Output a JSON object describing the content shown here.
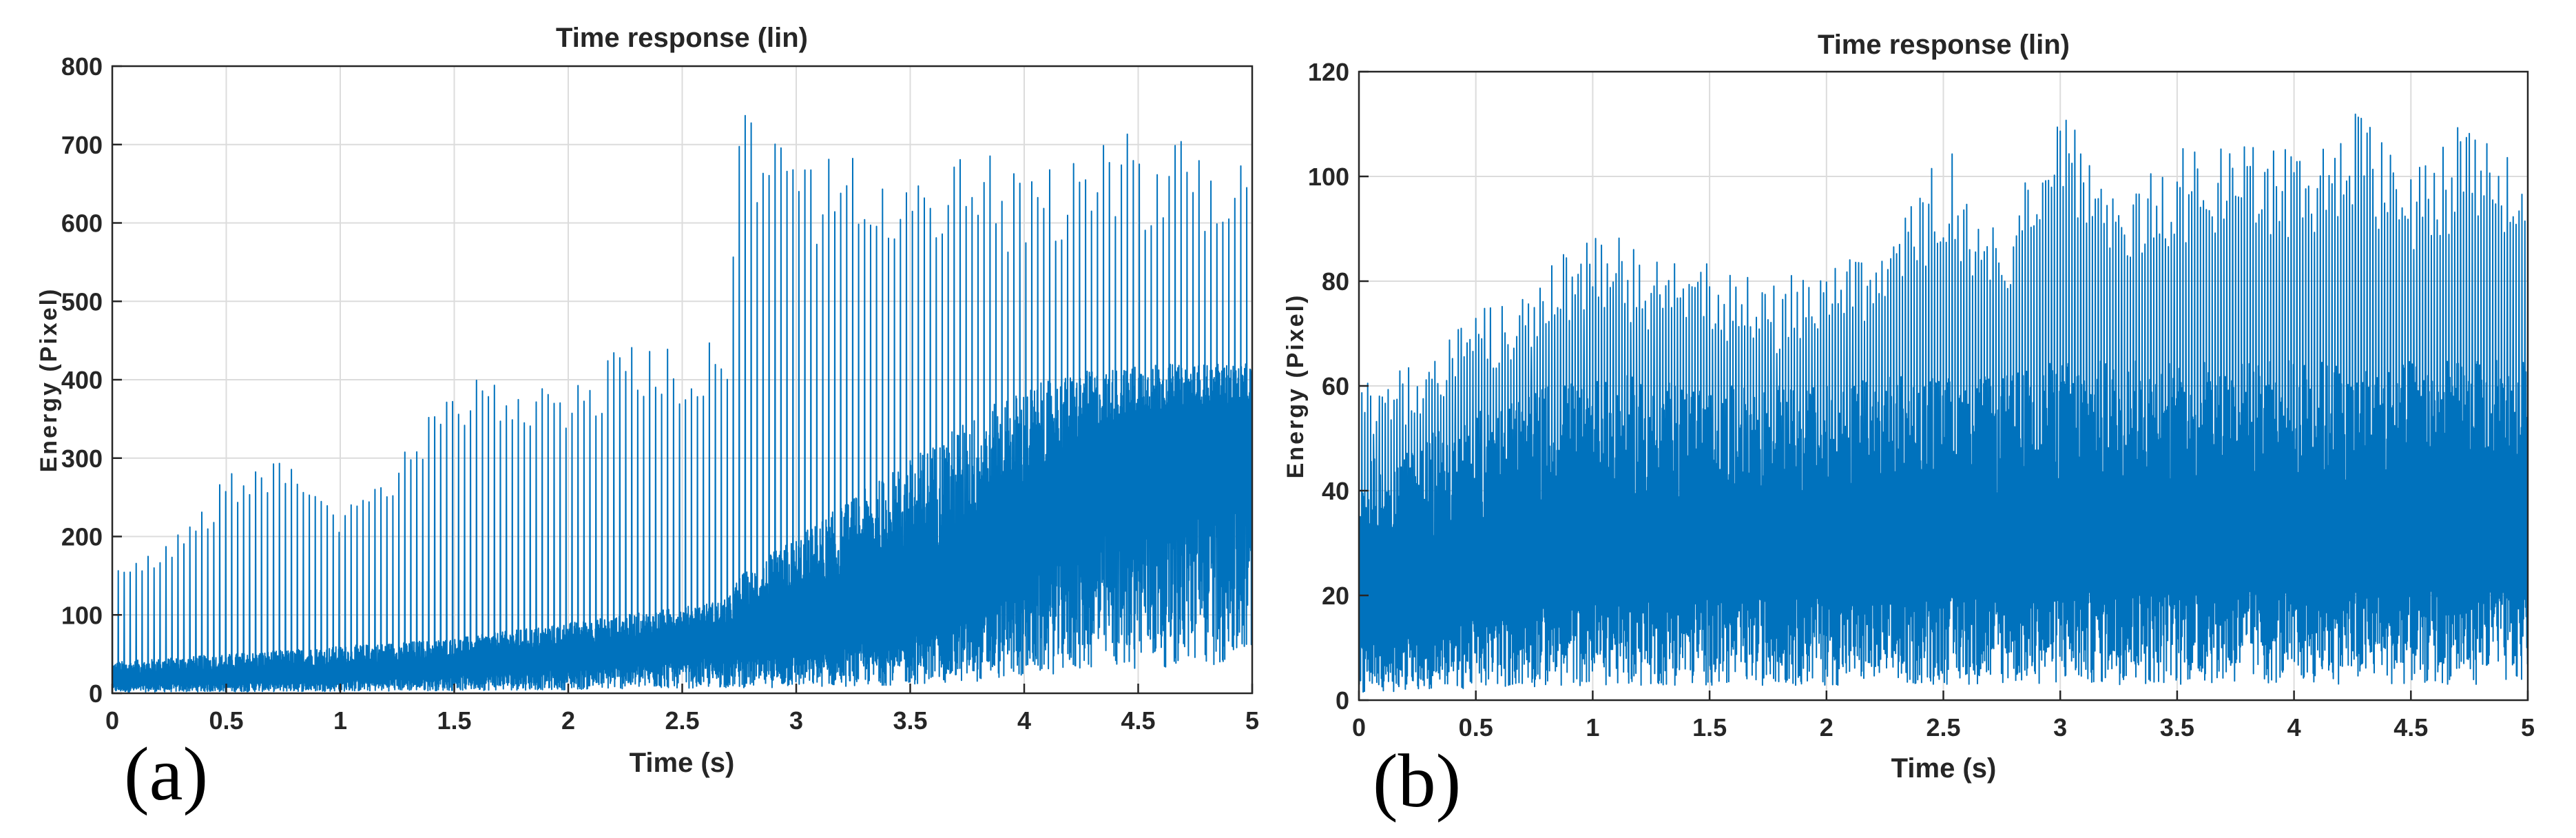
{
  "chart_data": [
    {
      "panel_label": "(a)",
      "type": "line",
      "title": "Time response (lin)",
      "xlabel": "Time (s)",
      "ylabel": "Energy (Pixel)",
      "xlim": [
        0,
        5
      ],
      "ylim": [
        0,
        800
      ],
      "xticks": [
        0,
        0.5,
        1,
        1.5,
        2,
        2.5,
        3,
        3.5,
        4,
        4.5,
        5
      ],
      "yticks": [
        0,
        100,
        200,
        300,
        400,
        500,
        600,
        700,
        800
      ],
      "grid": true,
      "color": "#0072bd",
      "series": [
        {
          "x": [
            0.0,
            0.25,
            0.5,
            0.75,
            1.0,
            1.25,
            1.5,
            1.75,
            2.0,
            2.25,
            2.5,
            2.7,
            2.75,
            3.0,
            3.25,
            3.5,
            3.75,
            4.0,
            4.25,
            4.5,
            4.75,
            5.0
          ],
          "baseline": [
            15,
            18,
            20,
            22,
            25,
            30,
            35,
            40,
            45,
            55,
            65,
            70,
            70,
            75,
            90,
            110,
            140,
            200,
            280,
            320,
            340,
            340
          ],
          "band_top": [
            40,
            45,
            50,
            55,
            60,
            65,
            70,
            80,
            90,
            100,
            110,
            120,
            150,
            200,
            250,
            300,
            350,
            390,
            410,
            420,
            420,
            420
          ],
          "peak_envelope": [
            160,
            200,
            280,
            300,
            240,
            300,
            400,
            400,
            410,
            450,
            450,
            460,
            750,
            680,
            700,
            690,
            700,
            680,
            700,
            720,
            700,
            690
          ]
        }
      ]
    },
    {
      "panel_label": "(b)",
      "type": "line",
      "title": "Time response (lin)",
      "xlabel": "Time (s)",
      "ylabel": "Energy (Pixel)",
      "xlim": [
        0,
        5
      ],
      "ylim": [
        0,
        120
      ],
      "xticks": [
        0,
        0.5,
        1,
        1.5,
        2,
        2.5,
        3,
        3.5,
        4,
        4.5,
        5
      ],
      "yticks": [
        0,
        20,
        40,
        60,
        80,
        100,
        120
      ],
      "grid": true,
      "color": "#0072bd",
      "series": [
        {
          "x": [
            0.0,
            0.25,
            0.5,
            0.75,
            1.0,
            1.25,
            1.5,
            1.75,
            2.0,
            2.25,
            2.5,
            2.75,
            3.0,
            3.25,
            3.5,
            3.75,
            4.0,
            4.25,
            4.5,
            4.75,
            5.0
          ],
          "baseline": [
            15,
            18,
            22,
            25,
            27,
            27,
            28,
            28,
            28,
            28,
            29,
            29,
            30,
            30,
            30,
            30,
            30,
            30,
            30,
            30,
            30
          ],
          "band_top": [
            45,
            50,
            55,
            60,
            62,
            62,
            60,
            60,
            60,
            62,
            62,
            62,
            65,
            65,
            65,
            65,
            65,
            65,
            65,
            65,
            65
          ],
          "peak_envelope": [
            60,
            65,
            75,
            80,
            92,
            85,
            85,
            80,
            84,
            85,
            107,
            90,
            115,
            100,
            105,
            110,
            105,
            115,
            100,
            112,
            105
          ]
        }
      ]
    }
  ]
}
